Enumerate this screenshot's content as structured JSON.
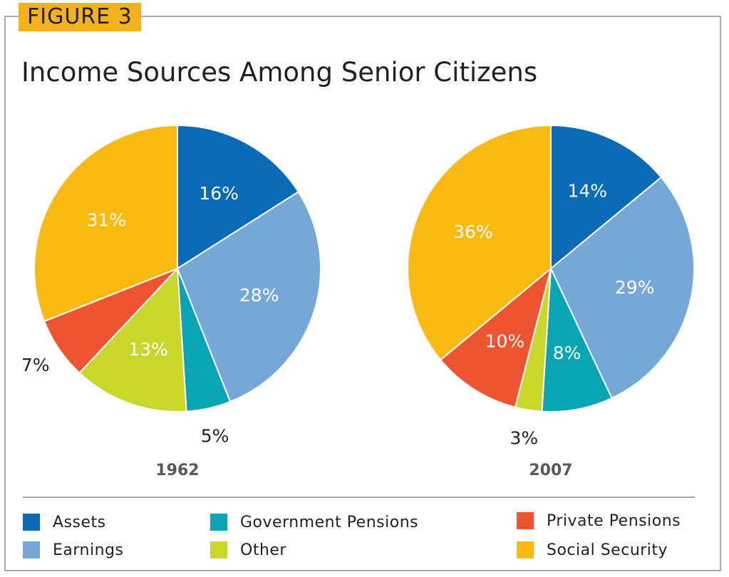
{
  "figure_label": "FIGURE 3",
  "chart_data": {
    "type": "pie",
    "title": "Income Sources Among Senior Citizens",
    "categories": [
      "Assets",
      "Earnings",
      "Government Pensions",
      "Other",
      "Private Pensions",
      "Social Security"
    ],
    "colors": [
      "#0a6ab5",
      "#75a8d6",
      "#0aa5b5",
      "#c9d62a",
      "#ef5430",
      "#fbba12"
    ],
    "series": [
      {
        "name": "1962",
        "values": [
          16,
          28,
          5,
          13,
          7,
          31
        ],
        "labels": [
          "16%",
          "28%",
          "5%",
          "13%",
          "7%",
          "31%"
        ]
      },
      {
        "name": "2007",
        "values": [
          14,
          29,
          8,
          3,
          10,
          36
        ],
        "labels": [
          "14%",
          "29%",
          "8%",
          "3%",
          "10%",
          "36%"
        ]
      }
    ],
    "legend_position": "bottom"
  }
}
